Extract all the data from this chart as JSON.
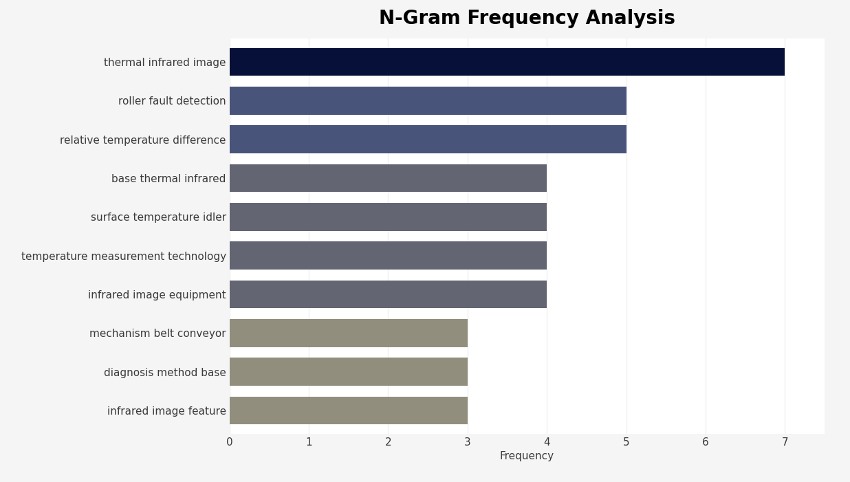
{
  "title": "N-Gram Frequency Analysis",
  "xlabel": "Frequency",
  "categories": [
    "infrared image feature",
    "diagnosis method base",
    "mechanism belt conveyor",
    "infrared image equipment",
    "temperature measurement technology",
    "surface temperature idler",
    "base thermal infrared",
    "relative temperature difference",
    "roller fault detection",
    "thermal infrared image"
  ],
  "values": [
    3,
    3,
    3,
    4,
    4,
    4,
    4,
    5,
    5,
    7
  ],
  "bar_colors": [
    "#918e7d",
    "#918e7d",
    "#918e7d",
    "#636573",
    "#636573",
    "#636573",
    "#636573",
    "#49547a",
    "#49547a",
    "#071038"
  ],
  "xlim": [
    0,
    7.5
  ],
  "xticks": [
    0,
    1,
    2,
    3,
    4,
    5,
    6,
    7
  ],
  "figure_bg": "#f5f5f5",
  "plot_bg": "#ffffff",
  "bar_height": 0.72,
  "title_fontsize": 20,
  "label_fontsize": 11,
  "tick_fontsize": 11,
  "label_color": "#3a3a3a",
  "tick_color": "#3a3a3a"
}
